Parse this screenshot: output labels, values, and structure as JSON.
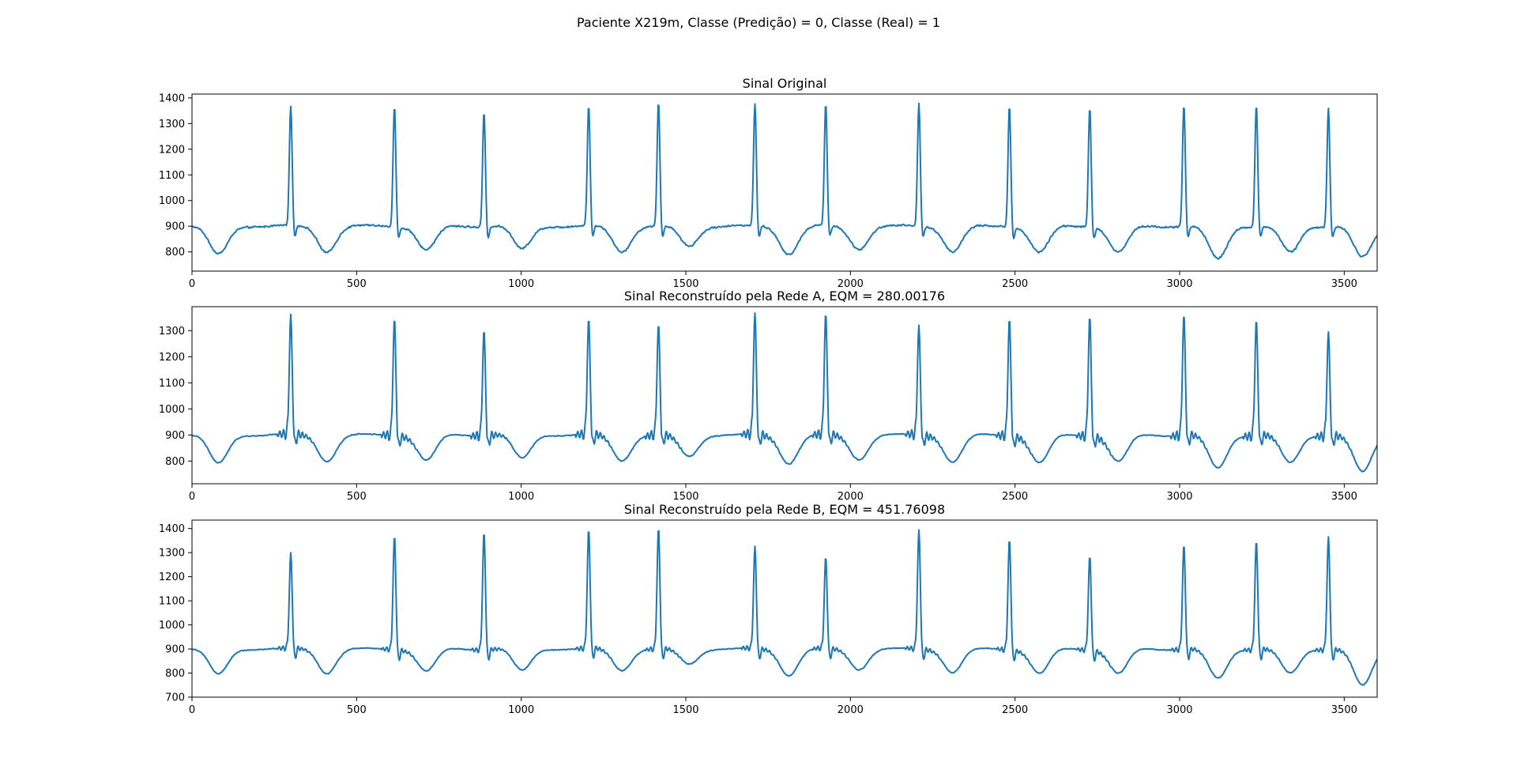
{
  "figure": {
    "suptitle": "Paciente X219m, Classe (Predição) = 0, Classe (Real) = 1",
    "line_color": "#1f77b4"
  },
  "chart_data": [
    {
      "type": "line",
      "title": "Sinal Original",
      "xlabel": "",
      "ylabel": "",
      "xlim": [
        0,
        3600
      ],
      "ylim": [
        725,
        1415
      ],
      "xticks": [
        0,
        500,
        1000,
        1500,
        2000,
        2500,
        3000,
        3500
      ],
      "yticks": [
        800,
        900,
        1000,
        1100,
        1200,
        1300,
        1400
      ],
      "grid": false,
      "baseline_approx": 900,
      "r_peaks": [
        {
          "x": 300,
          "y": 1365
        },
        {
          "x": 615,
          "y": 1372
        },
        {
          "x": 887,
          "y": 1350
        },
        {
          "x": 1205,
          "y": 1368
        },
        {
          "x": 1417,
          "y": 1382
        },
        {
          "x": 1710,
          "y": 1376
        },
        {
          "x": 1925,
          "y": 1372
        },
        {
          "x": 2208,
          "y": 1378
        },
        {
          "x": 2483,
          "y": 1376
        },
        {
          "x": 2727,
          "y": 1367
        },
        {
          "x": 3013,
          "y": 1374
        },
        {
          "x": 3233,
          "y": 1372
        },
        {
          "x": 3452,
          "y": 1363
        }
      ],
      "troughs": [
        {
          "x": 80,
          "y": 790
        },
        {
          "x": 408,
          "y": 785
        },
        {
          "x": 712,
          "y": 790
        },
        {
          "x": 1000,
          "y": 795
        },
        {
          "x": 1305,
          "y": 785
        },
        {
          "x": 1510,
          "y": 805
        },
        {
          "x": 1812,
          "y": 775
        },
        {
          "x": 2025,
          "y": 795
        },
        {
          "x": 2310,
          "y": 785
        },
        {
          "x": 2575,
          "y": 780
        },
        {
          "x": 2815,
          "y": 780
        },
        {
          "x": 3115,
          "y": 755
        },
        {
          "x": 3335,
          "y": 780
        },
        {
          "x": 3555,
          "y": 760
        }
      ]
    },
    {
      "type": "line",
      "title": "Sinal Reconstruído pela Rede A, EQM = 280.00176",
      "xlabel": "",
      "ylabel": "",
      "xlim": [
        0,
        3600
      ],
      "ylim": [
        713,
        1392
      ],
      "xticks": [
        0,
        500,
        1000,
        1500,
        2000,
        2500,
        3000,
        3500
      ],
      "yticks": [
        800,
        900,
        1000,
        1100,
        1200,
        1300
      ],
      "grid": false,
      "baseline_approx": 900,
      "r_peaks": [
        {
          "x": 300,
          "y": 1360
        },
        {
          "x": 615,
          "y": 1350
        },
        {
          "x": 887,
          "y": 1308
        },
        {
          "x": 1205,
          "y": 1345
        },
        {
          "x": 1417,
          "y": 1325
        },
        {
          "x": 1710,
          "y": 1365
        },
        {
          "x": 1925,
          "y": 1365
        },
        {
          "x": 2208,
          "y": 1322
        },
        {
          "x": 2483,
          "y": 1352
        },
        {
          "x": 2727,
          "y": 1362
        },
        {
          "x": 3013,
          "y": 1365
        },
        {
          "x": 3233,
          "y": 1345
        },
        {
          "x": 3452,
          "y": 1300
        }
      ],
      "troughs": [
        {
          "x": 80,
          "y": 790
        },
        {
          "x": 408,
          "y": 785
        },
        {
          "x": 712,
          "y": 785
        },
        {
          "x": 1000,
          "y": 795
        },
        {
          "x": 1305,
          "y": 785
        },
        {
          "x": 1510,
          "y": 800
        },
        {
          "x": 1812,
          "y": 775
        },
        {
          "x": 2025,
          "y": 790
        },
        {
          "x": 2310,
          "y": 780
        },
        {
          "x": 2575,
          "y": 775
        },
        {
          "x": 2815,
          "y": 780
        },
        {
          "x": 3115,
          "y": 755
        },
        {
          "x": 3335,
          "y": 775
        },
        {
          "x": 3555,
          "y": 740
        }
      ]
    },
    {
      "type": "line",
      "title": "Sinal Reconstruído pela Rede B, EQM = 451.76098",
      "xlabel": "",
      "ylabel": "",
      "xlim": [
        0,
        3600
      ],
      "ylim": [
        700,
        1435
      ],
      "xticks": [
        0,
        500,
        1000,
        1500,
        2000,
        2500,
        3000,
        3500
      ],
      "yticks": [
        700,
        800,
        900,
        1000,
        1100,
        1200,
        1300,
        1400
      ],
      "grid": false,
      "baseline_approx": 900,
      "r_peaks": [
        {
          "x": 300,
          "y": 1298
        },
        {
          "x": 615,
          "y": 1375
        },
        {
          "x": 887,
          "y": 1390
        },
        {
          "x": 1205,
          "y": 1395
        },
        {
          "x": 1417,
          "y": 1402
        },
        {
          "x": 1710,
          "y": 1325
        },
        {
          "x": 1925,
          "y": 1280
        },
        {
          "x": 2208,
          "y": 1395
        },
        {
          "x": 2483,
          "y": 1362
        },
        {
          "x": 2727,
          "y": 1292
        },
        {
          "x": 3013,
          "y": 1335
        },
        {
          "x": 3233,
          "y": 1352
        },
        {
          "x": 3452,
          "y": 1370
        }
      ],
      "troughs": [
        {
          "x": 80,
          "y": 795
        },
        {
          "x": 408,
          "y": 785
        },
        {
          "x": 712,
          "y": 790
        },
        {
          "x": 1000,
          "y": 795
        },
        {
          "x": 1305,
          "y": 795
        },
        {
          "x": 1510,
          "y": 820
        },
        {
          "x": 1812,
          "y": 775
        },
        {
          "x": 2025,
          "y": 800
        },
        {
          "x": 2310,
          "y": 785
        },
        {
          "x": 2575,
          "y": 780
        },
        {
          "x": 2815,
          "y": 780
        },
        {
          "x": 3115,
          "y": 760
        },
        {
          "x": 3335,
          "y": 780
        },
        {
          "x": 3555,
          "y": 730
        }
      ]
    }
  ]
}
